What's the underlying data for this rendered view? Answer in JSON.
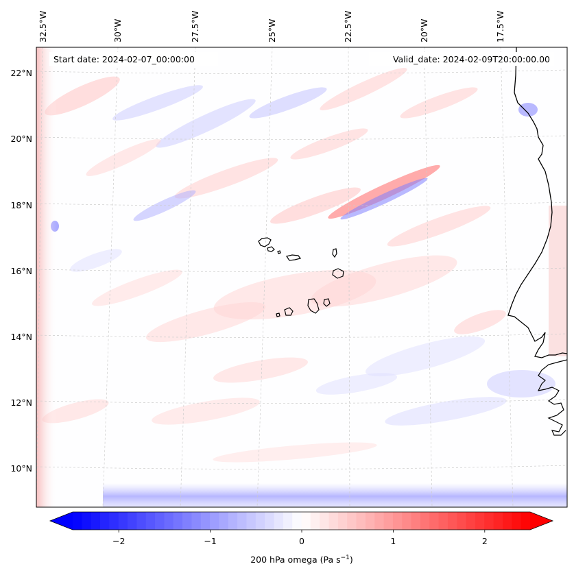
{
  "annotations": {
    "start_date": "Start date: 2024-02-07_00:00:00",
    "valid_date": "Valid_date: 2024-02-09T20:00:00.00"
  },
  "map": {
    "lon_labels": [
      "32.5°W",
      "30°W",
      "27.5°W",
      "25°W",
      "22.5°W",
      "20°W",
      "17.5°W"
    ],
    "lat_labels": [
      "22°N",
      "20°N",
      "18°N",
      "16°N",
      "14°N",
      "12°N",
      "10°N"
    ],
    "grid": true,
    "field": "200 hPa omega",
    "region": "Cabo Verde islands and West African coast"
  },
  "colorbar": {
    "label": "200 hPa omega (Pa s",
    "label_exp": "−1",
    "label_close": ")",
    "ticks": [
      "−2",
      "−1",
      "0",
      "1",
      "2"
    ],
    "tick_values": [
      -2,
      -1,
      0,
      1,
      2
    ],
    "vmin": -2.5,
    "vmax": 2.5,
    "extend": "both",
    "low_color": "#0000ff",
    "mid_color": "#ffffff",
    "high_color": "#ff0000"
  }
}
